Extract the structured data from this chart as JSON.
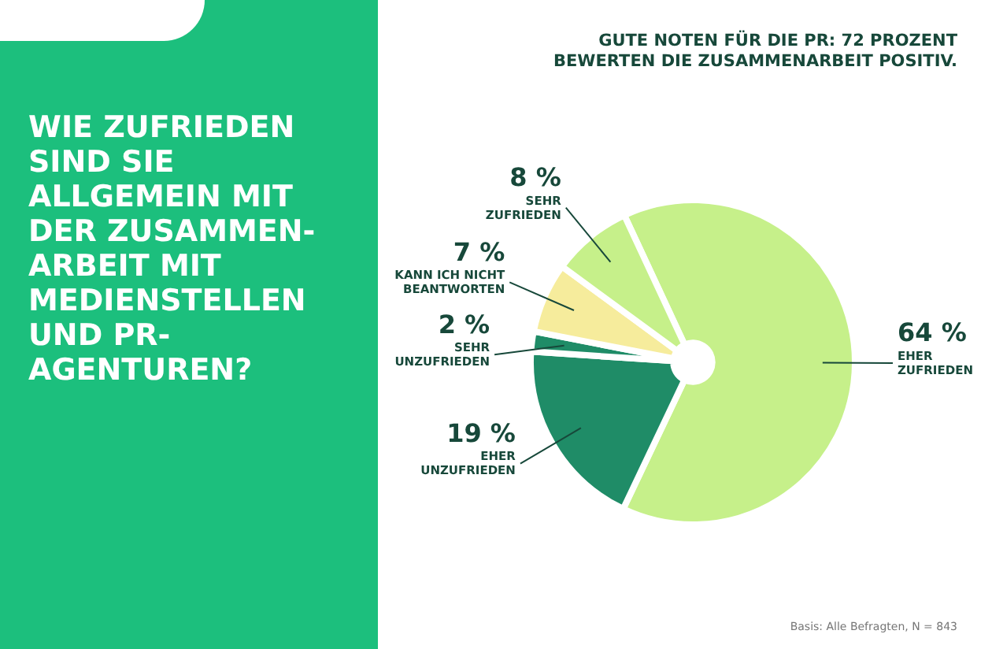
{
  "chart_data": {
    "type": "pie",
    "title": "WIE ZUFRIEDEN SIND SIE ALLGEMEIN MIT DER ZUSAMMEN-ARBEIT MIT MEDIENSTELLEN UND PR-AGENTUREN?",
    "subtitle": "GUTE NOTEN FÜR DIE PR: 72 PROZENT BEWERTEN DIE ZUSAMMENARBEIT POSITIV.",
    "categories": [
      "EHER ZUFRIEDEN",
      "EHER UNZUFRIEDEN",
      "SEHR UNZUFRIEDEN",
      "KANN ICH NICHT BEANTWORTEN",
      "SEHR ZUFRIEDEN"
    ],
    "values": [
      64,
      19,
      2,
      7,
      8
    ],
    "colors": [
      "#c6f08a",
      "#1f8c67",
      "#1f8c67",
      "#f6ec9c",
      "#c6f08a"
    ],
    "value_labels": [
      "64 %",
      "19 %",
      "2 %",
      "7 %",
      "8 %"
    ],
    "annotations": [
      "Basis: Alle Befragten, N = 843"
    ],
    "legend": false
  }
}
